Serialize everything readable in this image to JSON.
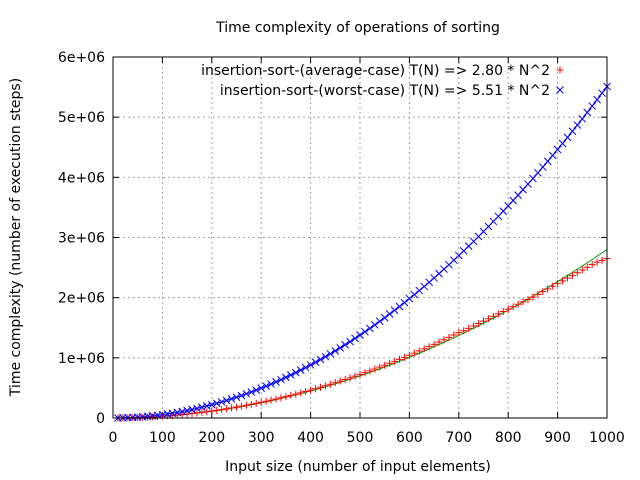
{
  "chart_data": {
    "type": "scatter",
    "title": "Time complexity of operations of sorting",
    "xlabel": "Input size (number of input elements)",
    "ylabel": "Time complexity (number of execution steps)",
    "xlim": [
      0,
      1000
    ],
    "ylim": [
      0,
      6000000
    ],
    "x_ticks": [
      "0",
      "100",
      "200",
      "300",
      "400",
      "500",
      "600",
      "700",
      "800",
      "900",
      "1000"
    ],
    "y_ticks": [
      "0",
      "1e+06",
      "2e+06",
      "3e+06",
      "4e+06",
      "5e+06",
      "6e+06"
    ],
    "grid": true,
    "legend_position": "top-right",
    "x": [
      10,
      20,
      30,
      40,
      50,
      60,
      70,
      80,
      90,
      100,
      110,
      120,
      130,
      140,
      150,
      160,
      170,
      180,
      190,
      200,
      210,
      220,
      230,
      240,
      250,
      260,
      270,
      280,
      290,
      300,
      310,
      320,
      330,
      340,
      350,
      360,
      370,
      380,
      390,
      400,
      410,
      420,
      430,
      440,
      450,
      460,
      470,
      480,
      490,
      500,
      510,
      520,
      530,
      540,
      550,
      560,
      570,
      580,
      590,
      600,
      610,
      620,
      630,
      640,
      650,
      660,
      670,
      680,
      690,
      700,
      710,
      720,
      730,
      740,
      750,
      760,
      770,
      780,
      790,
      800,
      810,
      820,
      830,
      840,
      850,
      860,
      870,
      880,
      890,
      900,
      910,
      920,
      930,
      940,
      950,
      960,
      970,
      980,
      990,
      1000
    ],
    "series": [
      {
        "name": "insertion-sort-(average-case) T(N) => 2.80 * N^2",
        "marker": "+",
        "color": "#ff0000",
        "fit_coefficient": 2.8,
        "fit_color": "#00a000",
        "values": [
          285,
          1149,
          2592,
          4615,
          7219,
          10402,
          14164,
          18506,
          23428,
          28930,
          35011,
          41672,
          48912,
          56732,
          65131,
          74110,
          83669,
          93807,
          104524,
          115822,
          127698,
          140155,
          153190,
          166806,
          181001,
          195775,
          211129,
          227063,
          243576,
          260669,
          278342,
          296594,
          315425,
          334836,
          354827,
          375397,
          396547,
          418276,
          440585,
          463474,
          486942,
          510989,
          535616,
          560823,
          586610,
          612976,
          639921,
          667446,
          695550,
          724234,
          753498,
          783341,
          813764,
          844766,
          876348,
          908509,
          941250,
          974571,
          1008471,
          1042950,
          1078009,
          1113647,
          1149865,
          1186663,
          1224040,
          1261997,
          1300533,
          1339649,
          1379344,
          1419619,
          1450000,
          1490000,
          1530000,
          1570000,
          1610000,
          1650000,
          1690000,
          1730000,
          1770000,
          1810000,
          1850000,
          1890000,
          1930000,
          1970000,
          2010000,
          2055000,
          2100000,
          2145000,
          2190000,
          2235000,
          2280000,
          2325000,
          2370000,
          2415000,
          2460000,
          2505000,
          2550000,
          2590000,
          2620000,
          2650000
        ]
      },
      {
        "name": "insertion-sort-(worst-case) T(N) => 5.51 * N^2",
        "marker": "x",
        "color": "#0000ff",
        "fit_coefficient": 5.51,
        "fit_color": "#0000ff",
        "values": [
          551,
          2204,
          4959,
          8816,
          13775,
          19836,
          26999,
          35264,
          44631,
          55100,
          66671,
          79344,
          93119,
          107996,
          123975,
          141056,
          159239,
          178524,
          198911,
          220400,
          242991,
          266684,
          291479,
          317376,
          344375,
          372476,
          401679,
          431984,
          463391,
          495900,
          529511,
          564224,
          600039,
          636956,
          674975,
          714096,
          754319,
          795644,
          838071,
          881600,
          926231,
          971964,
          1018799,
          1066736,
          1115775,
          1165916,
          1217159,
          1269504,
          1322951,
          1377500,
          1433151,
          1489904,
          1547759,
          1606716,
          1666775,
          1727936,
          1790199,
          1853564,
          1918031,
          1983600,
          2050271,
          2118044,
          2186919,
          2256896,
          2327975,
          2400156,
          2473439,
          2547824,
          2623311,
          2699900,
          2777591,
          2856384,
          2936279,
          3017276,
          3099375,
          3182576,
          3266879,
          3352284,
          3438791,
          3526400,
          3615111,
          3704924,
          3795839,
          3887856,
          3980975,
          4075196,
          4170519,
          4266944,
          4364471,
          4463100,
          4562831,
          4663664,
          4765599,
          4868636,
          4972775,
          5078016,
          5184359,
          5291804,
          5400351,
          5510000
        ]
      }
    ]
  }
}
